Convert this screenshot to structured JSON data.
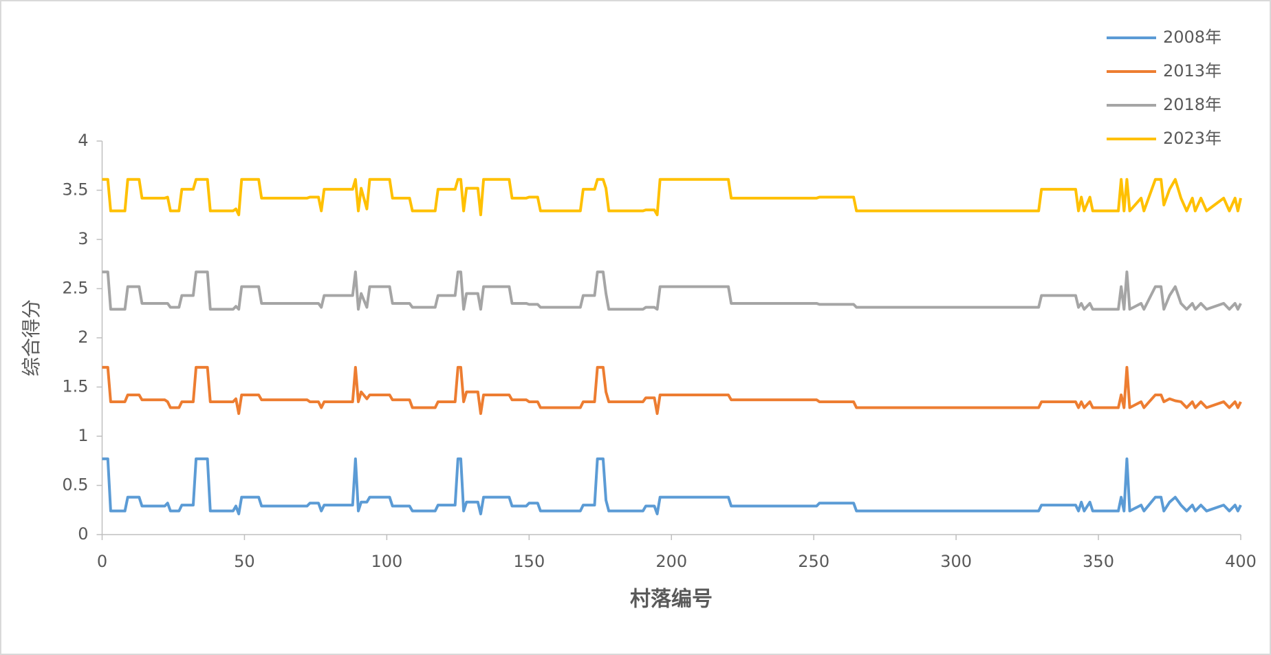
{
  "chart_data": {
    "type": "line",
    "x_label": "村落编号",
    "y_label": "综合得分",
    "xlim": [
      0,
      400
    ],
    "xticks": [
      0,
      50,
      100,
      150,
      200,
      250,
      300,
      350,
      400
    ],
    "ylim": [
      0,
      4
    ],
    "yticks": [
      0,
      0.5,
      1,
      1.5,
      2,
      2.5,
      3,
      3.5,
      4
    ],
    "grid": false,
    "legend": "top-right",
    "x": [
      0,
      2,
      3,
      8,
      9,
      13,
      14,
      22,
      23,
      24,
      27,
      28,
      32,
      33,
      37,
      38,
      46,
      47,
      48,
      49,
      55,
      56,
      72,
      73,
      76,
      77,
      78,
      88,
      89,
      90,
      91,
      93,
      94,
      101,
      102,
      108,
      109,
      117,
      118,
      124,
      125,
      126,
      127,
      128,
      132,
      133,
      134,
      143,
      144,
      149,
      150,
      153,
      154,
      168,
      169,
      173,
      174,
      176,
      177,
      178,
      190,
      191,
      194,
      195,
      196,
      220,
      221,
      251,
      252,
      264,
      265,
      329,
      330,
      342,
      343,
      344,
      345,
      347,
      348,
      357,
      358,
      359,
      360,
      361,
      365,
      366,
      370,
      372,
      373,
      375,
      377,
      379,
      381,
      383,
      384,
      386,
      388,
      394,
      396,
      398,
      399,
      400
    ],
    "series": [
      {
        "name": "2008年",
        "color": "#5b9bd5",
        "values": [
          0.77,
          0.77,
          0.24,
          0.24,
          0.38,
          0.38,
          0.29,
          0.29,
          0.32,
          0.24,
          0.24,
          0.3,
          0.3,
          0.77,
          0.77,
          0.24,
          0.24,
          0.29,
          0.21,
          0.38,
          0.38,
          0.29,
          0.29,
          0.32,
          0.32,
          0.24,
          0.3,
          0.3,
          0.77,
          0.24,
          0.33,
          0.33,
          0.38,
          0.38,
          0.29,
          0.29,
          0.24,
          0.24,
          0.3,
          0.3,
          0.77,
          0.77,
          0.24,
          0.33,
          0.33,
          0.21,
          0.38,
          0.38,
          0.29,
          0.29,
          0.32,
          0.32,
          0.24,
          0.24,
          0.3,
          0.3,
          0.77,
          0.77,
          0.35,
          0.24,
          0.24,
          0.29,
          0.29,
          0.21,
          0.38,
          0.38,
          0.29,
          0.29,
          0.32,
          0.32,
          0.24,
          0.24,
          0.3,
          0.3,
          0.24,
          0.33,
          0.24,
          0.33,
          0.24,
          0.24,
          0.38,
          0.24,
          0.77,
          0.24,
          0.3,
          0.24,
          0.38,
          0.38,
          0.24,
          0.33,
          0.38,
          0.3,
          0.24,
          0.3,
          0.24,
          0.3,
          0.24,
          0.3,
          0.24,
          0.3,
          0.24,
          0.3
        ]
      },
      {
        "name": "2013年",
        "color": "#ed7d31",
        "values": [
          1.7,
          1.7,
          1.35,
          1.35,
          1.42,
          1.42,
          1.37,
          1.37,
          1.35,
          1.29,
          1.29,
          1.35,
          1.35,
          1.7,
          1.7,
          1.35,
          1.35,
          1.38,
          1.23,
          1.42,
          1.42,
          1.37,
          1.37,
          1.35,
          1.35,
          1.29,
          1.35,
          1.35,
          1.7,
          1.35,
          1.45,
          1.38,
          1.42,
          1.42,
          1.37,
          1.37,
          1.29,
          1.29,
          1.35,
          1.35,
          1.7,
          1.7,
          1.35,
          1.45,
          1.45,
          1.23,
          1.42,
          1.42,
          1.37,
          1.37,
          1.35,
          1.35,
          1.29,
          1.29,
          1.35,
          1.35,
          1.7,
          1.7,
          1.45,
          1.35,
          1.35,
          1.39,
          1.39,
          1.23,
          1.42,
          1.42,
          1.37,
          1.37,
          1.35,
          1.35,
          1.29,
          1.29,
          1.35,
          1.35,
          1.29,
          1.35,
          1.29,
          1.35,
          1.29,
          1.29,
          1.42,
          1.29,
          1.7,
          1.29,
          1.35,
          1.29,
          1.42,
          1.42,
          1.35,
          1.38,
          1.36,
          1.35,
          1.29,
          1.35,
          1.29,
          1.35,
          1.29,
          1.35,
          1.29,
          1.35,
          1.29,
          1.35
        ]
      },
      {
        "name": "2018年",
        "color": "#a5a5a5",
        "values": [
          2.67,
          2.67,
          2.29,
          2.29,
          2.52,
          2.52,
          2.35,
          2.35,
          2.35,
          2.31,
          2.31,
          2.43,
          2.43,
          2.67,
          2.67,
          2.29,
          2.29,
          2.32,
          2.29,
          2.52,
          2.52,
          2.35,
          2.35,
          2.35,
          2.35,
          2.31,
          2.43,
          2.43,
          2.67,
          2.29,
          2.45,
          2.31,
          2.52,
          2.52,
          2.35,
          2.35,
          2.31,
          2.31,
          2.43,
          2.43,
          2.67,
          2.67,
          2.29,
          2.45,
          2.45,
          2.29,
          2.52,
          2.52,
          2.35,
          2.35,
          2.34,
          2.34,
          2.31,
          2.31,
          2.43,
          2.43,
          2.67,
          2.67,
          2.45,
          2.29,
          2.29,
          2.31,
          2.31,
          2.29,
          2.52,
          2.52,
          2.35,
          2.35,
          2.34,
          2.34,
          2.31,
          2.31,
          2.43,
          2.43,
          2.31,
          2.35,
          2.29,
          2.35,
          2.29,
          2.29,
          2.52,
          2.29,
          2.67,
          2.29,
          2.35,
          2.29,
          2.52,
          2.52,
          2.29,
          2.43,
          2.52,
          2.35,
          2.29,
          2.35,
          2.29,
          2.35,
          2.29,
          2.35,
          2.29,
          2.35,
          2.29,
          2.35
        ]
      },
      {
        "name": "2023年",
        "color": "#ffc000",
        "values": [
          3.61,
          3.61,
          3.29,
          3.29,
          3.61,
          3.61,
          3.42,
          3.42,
          3.43,
          3.29,
          3.29,
          3.51,
          3.51,
          3.61,
          3.61,
          3.29,
          3.29,
          3.31,
          3.25,
          3.61,
          3.61,
          3.42,
          3.42,
          3.43,
          3.43,
          3.29,
          3.51,
          3.51,
          3.61,
          3.29,
          3.52,
          3.31,
          3.61,
          3.61,
          3.42,
          3.42,
          3.29,
          3.29,
          3.51,
          3.51,
          3.61,
          3.61,
          3.29,
          3.52,
          3.52,
          3.25,
          3.61,
          3.61,
          3.42,
          3.42,
          3.43,
          3.43,
          3.29,
          3.29,
          3.51,
          3.51,
          3.61,
          3.61,
          3.52,
          3.29,
          3.29,
          3.3,
          3.3,
          3.25,
          3.61,
          3.61,
          3.42,
          3.42,
          3.43,
          3.43,
          3.29,
          3.29,
          3.51,
          3.51,
          3.29,
          3.43,
          3.29,
          3.43,
          3.29,
          3.29,
          3.61,
          3.29,
          3.61,
          3.29,
          3.42,
          3.29,
          3.61,
          3.61,
          3.35,
          3.51,
          3.61,
          3.42,
          3.29,
          3.42,
          3.29,
          3.42,
          3.29,
          3.42,
          3.29,
          3.42,
          3.29,
          3.42
        ]
      }
    ]
  }
}
